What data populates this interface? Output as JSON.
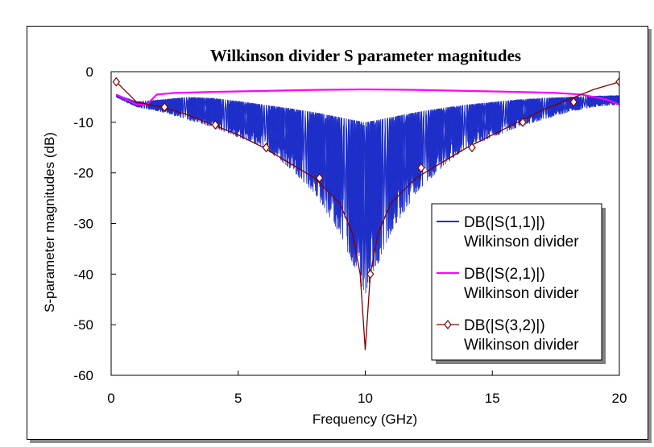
{
  "chart_data": {
    "type": "line",
    "title": "Wilkinson divider S parameter  magnitudes",
    "xlabel": "Frequency (GHz)",
    "ylabel": "S-parameter magnitudes (dB)",
    "xlim": [
      0,
      20
    ],
    "ylim": [
      -60,
      0
    ],
    "xticks": [
      0,
      5,
      10,
      15,
      20
    ],
    "yticks": [
      0,
      -10,
      -20,
      -30,
      -40,
      -50,
      -60
    ],
    "grid": false,
    "legend_position": "right",
    "series": [
      {
        "name": "DB(|S(1,1)|) Wilkinson divider",
        "label_line1": "DB(|S(1,1)|)",
        "label_line2": "Wilkinson divider",
        "color": "#1f2fc9",
        "marker": "none",
        "envelope_upper": {
          "x": [
            0.2,
            1,
            2,
            3,
            4,
            5,
            6,
            7,
            8,
            9,
            10,
            11,
            12,
            13,
            14,
            15,
            16,
            17,
            18,
            19,
            20
          ],
          "y": [
            -4.5,
            -6,
            -5.5,
            -5,
            -5.2,
            -5.8,
            -6.5,
            -7.2,
            -8,
            -9,
            -10,
            -9,
            -8,
            -7.2,
            -6.5,
            -6,
            -5.5,
            -5.2,
            -5,
            -4.8,
            -4.7
          ]
        },
        "envelope_lower": {
          "x": [
            0.2,
            1,
            2,
            3,
            4,
            5,
            6,
            7,
            8,
            9,
            10,
            11,
            12,
            13,
            14,
            15,
            16,
            17,
            18,
            19,
            20
          ],
          "y": [
            -5,
            -7,
            -8,
            -9.5,
            -11,
            -13,
            -15,
            -19,
            -24,
            -32,
            -44,
            -32,
            -24,
            -19,
            -15,
            -13,
            -11,
            -9.5,
            -8,
            -7,
            -6.5
          ]
        }
      },
      {
        "name": "DB(|S(2,1)|) Wilkinson divider",
        "label_line1": "DB(|S(2,1)|)",
        "label_line2": "Wilkinson divider",
        "color": "#ff00ff",
        "marker": "none",
        "x": [
          0.2,
          0.6,
          1.0,
          1.4,
          1.8,
          2.5,
          4,
          6,
          8,
          10,
          12,
          14,
          16,
          17.5,
          18.5,
          19.5,
          20
        ],
        "y": [
          -4.5,
          -5.5,
          -6.5,
          -6.5,
          -4.5,
          -4.2,
          -4.0,
          -3.8,
          -3.6,
          -3.5,
          -3.6,
          -3.8,
          -4.0,
          -4.2,
          -4.5,
          -5.5,
          -6.5
        ]
      },
      {
        "name": "DB(|S(3,2)|) Wilkinson divider",
        "label_line1": "DB(|S(3,2)|)",
        "label_line2": "Wilkinson divider",
        "color": "#800000",
        "marker": "diamond",
        "x": [
          0.2,
          1,
          2,
          3,
          4,
          5,
          6,
          7,
          8,
          9,
          9.5,
          9.8,
          10,
          10.2,
          10.5,
          11,
          12,
          13,
          14,
          15,
          16,
          17,
          18,
          19,
          20
        ],
        "y": [
          -2,
          -6,
          -7,
          -8.5,
          -10.5,
          -12.5,
          -15,
          -18,
          -21,
          -26,
          -32,
          -40,
          -55,
          -40,
          -32,
          -26,
          -21,
          -18,
          -15,
          -12.5,
          -10,
          -7.5,
          -5.5,
          -3.5,
          -2
        ],
        "marker_x": [
          0.2,
          2.1,
          4.1,
          6.1,
          8.2,
          10.2,
          12.2,
          14.2,
          16.2,
          18.2,
          20
        ],
        "marker_y": [
          -2,
          -7,
          -10.5,
          -15,
          -21,
          -40,
          -19,
          -15,
          -10,
          -6,
          -2
        ]
      }
    ]
  }
}
